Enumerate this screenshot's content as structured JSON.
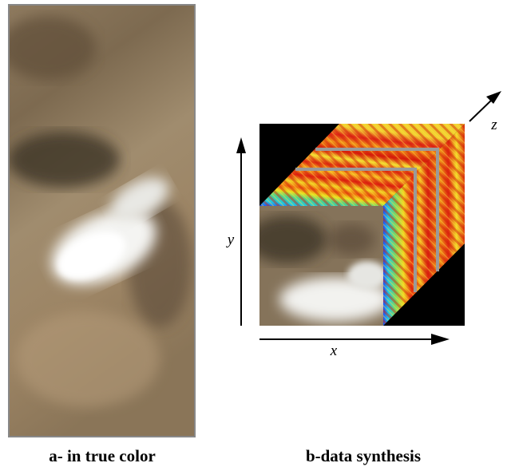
{
  "captions": {
    "left": "a- in true color",
    "right": "b-data synthesis"
  },
  "axes": {
    "x": "x",
    "y": "y",
    "z": "z"
  }
}
